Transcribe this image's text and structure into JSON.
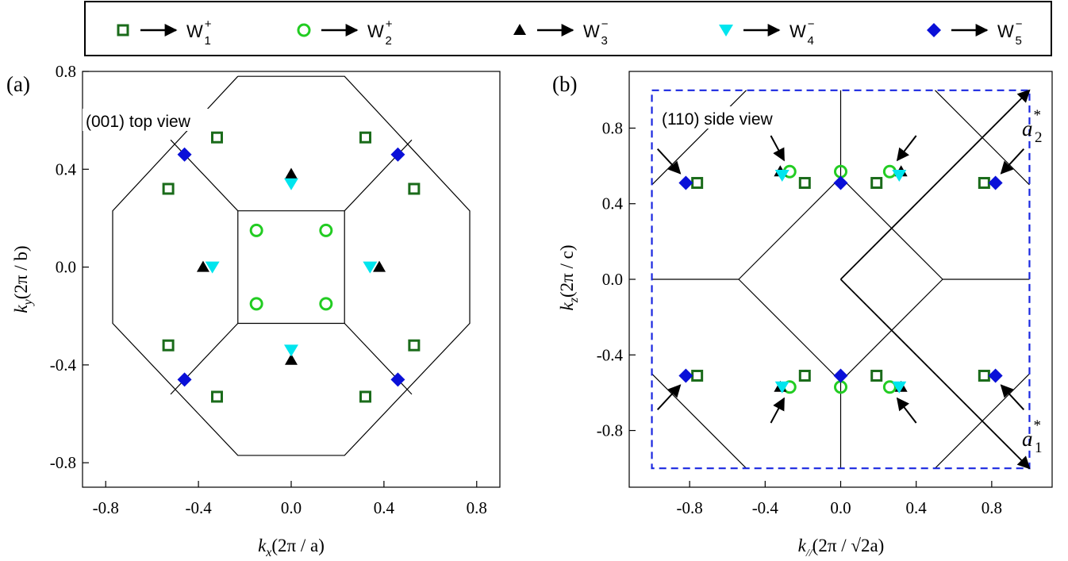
{
  "legend": {
    "items": [
      {
        "label": "W",
        "sup": "+",
        "sub": "1",
        "color": "#1a6b1a",
        "marker": "square-open"
      },
      {
        "label": "W",
        "sup": "+",
        "sub": "2",
        "color": "#22cc22",
        "marker": "circle-open"
      },
      {
        "label": "W",
        "sup": "−",
        "sub": "3",
        "color": "#000000",
        "marker": "triangle-up"
      },
      {
        "label": "W",
        "sup": "−",
        "sub": "4",
        "color": "#00e5ee",
        "marker": "triangle-down"
      },
      {
        "label": "W",
        "sup": "−",
        "sub": "5",
        "color": "#0a10d8",
        "marker": "diamond"
      }
    ]
  },
  "chart_data": [
    {
      "type": "scatter",
      "panel_label": "(a)",
      "annotation": "(001) top view",
      "xlabel": {
        "var": "k",
        "sub": "x",
        "rest": "(2π / a)"
      },
      "ylabel": {
        "var": "k",
        "sub": "y",
        "rest": "(2π / b)"
      },
      "xlim": [
        -0.9,
        0.9
      ],
      "ylim": [
        -0.9,
        0.8
      ],
      "xticks": [
        "-0.8",
        "-0.4",
        "0.0",
        "0.4",
        "0.8"
      ],
      "yticks": [
        "0.8",
        "0.4",
        "0.0",
        "-0.4",
        "-0.8"
      ],
      "xtick_values": [
        -0.8,
        -0.4,
        0.0,
        0.4,
        0.8
      ],
      "ytick_values": [
        0.8,
        0.4,
        0.0,
        -0.4,
        -0.8
      ],
      "series": [
        {
          "name": "W1+",
          "points": [
            [
              -0.32,
              0.53
            ],
            [
              0.32,
              0.53
            ],
            [
              -0.53,
              0.32
            ],
            [
              0.53,
              0.32
            ],
            [
              -0.53,
              -0.32
            ],
            [
              0.53,
              -0.32
            ],
            [
              -0.32,
              -0.53
            ],
            [
              0.32,
              -0.53
            ]
          ]
        },
        {
          "name": "W2+",
          "points": [
            [
              -0.15,
              0.15
            ],
            [
              0.15,
              0.15
            ],
            [
              -0.15,
              -0.15
            ],
            [
              0.15,
              -0.15
            ]
          ]
        },
        {
          "name": "W3-",
          "points": [
            [
              0.0,
              0.38
            ],
            [
              -0.38,
              0.0
            ],
            [
              0.38,
              0.0
            ],
            [
              0.0,
              -0.38
            ]
          ]
        },
        {
          "name": "W4-",
          "points": [
            [
              0.0,
              0.34
            ],
            [
              -0.34,
              0.0
            ],
            [
              0.34,
              0.0
            ],
            [
              0.0,
              -0.34
            ]
          ]
        },
        {
          "name": "W5-",
          "points": [
            [
              -0.46,
              0.46
            ],
            [
              0.46,
              0.46
            ],
            [
              -0.46,
              -0.46
            ],
            [
              0.46,
              -0.46
            ]
          ]
        }
      ],
      "zone_lines": [
        [
          [
            -0.23,
            0.23
          ],
          [
            0.23,
            0.23
          ],
          [
            0.23,
            -0.23
          ],
          [
            -0.23,
            -0.23
          ],
          [
            -0.23,
            0.23
          ]
        ],
        [
          [
            -0.23,
            0.78
          ],
          [
            0.23,
            0.78
          ],
          [
            0.77,
            0.23
          ],
          [
            0.77,
            -0.23
          ],
          [
            0.23,
            -0.77
          ],
          [
            -0.23,
            -0.77
          ],
          [
            -0.77,
            -0.23
          ],
          [
            -0.77,
            0.23
          ],
          [
            -0.23,
            0.78
          ]
        ],
        [
          [
            0.23,
            0.23
          ],
          [
            0.52,
            0.52
          ]
        ],
        [
          [
            -0.23,
            0.23
          ],
          [
            -0.52,
            0.52
          ]
        ],
        [
          [
            0.23,
            -0.23
          ],
          [
            0.52,
            -0.52
          ]
        ],
        [
          [
            -0.23,
            -0.23
          ],
          [
            -0.52,
            -0.52
          ]
        ]
      ]
    },
    {
      "type": "scatter",
      "panel_label": "(b)",
      "annotation": "(110) side view",
      "xlabel": {
        "var": "k",
        "sub": "//",
        "rest": "(2π / √2a)"
      },
      "ylabel": {
        "var": "k",
        "sub": "z",
        "rest": "(2π / c)"
      },
      "xlim": [
        -1.12,
        1.12
      ],
      "ylim": [
        -1.1,
        1.1
      ],
      "xticks": [
        "-0.8",
        "-0.4",
        "0.0",
        "0.4",
        "0.8"
      ],
      "yticks": [
        "0.8",
        "0.4",
        "0.0",
        "-0.4",
        "-0.8"
      ],
      "xtick_values": [
        -0.8,
        -0.4,
        0.0,
        0.4,
        0.8
      ],
      "ytick_values": [
        0.8,
        0.4,
        0.0,
        -0.4,
        -0.8
      ],
      "vector_labels": {
        "a2": "a",
        "a2_sup": "*",
        "a2_sub": "2",
        "a1": "a",
        "a1_sup": "*",
        "a1_sub": "1"
      },
      "series": [
        {
          "name": "W1+",
          "points": [
            [
              -0.76,
              0.51
            ],
            [
              -0.19,
              0.51
            ],
            [
              0.19,
              0.51
            ],
            [
              0.76,
              0.51
            ],
            [
              -0.76,
              -0.51
            ],
            [
              -0.19,
              -0.51
            ],
            [
              0.19,
              -0.51
            ],
            [
              0.76,
              -0.51
            ]
          ]
        },
        {
          "name": "W2+",
          "points": [
            [
              -0.27,
              0.57
            ],
            [
              0.0,
              0.57
            ],
            [
              0.26,
              0.57
            ],
            [
              -0.27,
              -0.57
            ],
            [
              0.0,
              -0.57
            ],
            [
              0.26,
              -0.57
            ]
          ]
        },
        {
          "name": "W3-",
          "points": [
            [
              -0.32,
              0.57
            ],
            [
              0.32,
              0.57
            ],
            [
              -0.32,
              -0.57
            ],
            [
              0.32,
              -0.57
            ]
          ]
        },
        {
          "name": "W4-",
          "points": [
            [
              -0.31,
              0.55
            ],
            [
              0.31,
              0.55
            ],
            [
              -0.31,
              -0.57
            ],
            [
              0.31,
              -0.57
            ]
          ]
        },
        {
          "name": "W5-",
          "points": [
            [
              -0.82,
              0.51
            ],
            [
              0.0,
              0.51
            ],
            [
              0.82,
              0.51
            ],
            [
              -0.82,
              -0.51
            ],
            [
              0.0,
              -0.51
            ],
            [
              0.82,
              -0.51
            ]
          ]
        }
      ],
      "zone_lines": [
        [
          [
            -0.54,
            0.0
          ],
          [
            0.0,
            0.54
          ],
          [
            0.54,
            0.0
          ],
          [
            0.0,
            -0.54
          ],
          [
            -0.54,
            0.0
          ]
        ],
        [
          [
            -1.0,
            0.0
          ],
          [
            -0.54,
            0.0
          ]
        ],
        [
          [
            0.54,
            0.0
          ],
          [
            1.0,
            0.0
          ]
        ],
        [
          [
            0.0,
            0.54
          ],
          [
            0.0,
            1.0
          ]
        ],
        [
          [
            0.0,
            -0.54
          ],
          [
            0.0,
            -1.0
          ]
        ],
        [
          [
            -1.0,
            0.5
          ],
          [
            -0.5,
            1.0
          ]
        ],
        [
          [
            0.5,
            1.0
          ],
          [
            1.0,
            0.5
          ]
        ],
        [
          [
            -1.0,
            -0.5
          ],
          [
            -0.5,
            -1.0
          ]
        ],
        [
          [
            0.5,
            -1.0
          ],
          [
            1.0,
            -0.5
          ]
        ]
      ],
      "reciprocal_vectors": [
        [
          [
            0.0,
            0.0
          ],
          [
            1.0,
            1.0
          ]
        ],
        [
          [
            0.0,
            0.0
          ],
          [
            1.0,
            -1.0
          ]
        ]
      ],
      "dashed_box": [
        [
          -1.0,
          -1.0
        ],
        [
          1.0,
          1.0
        ]
      ],
      "pointer_arrows": [
        [
          [
            -0.97,
            0.69
          ],
          [
            -0.85,
            0.56
          ]
        ],
        [
          [
            -0.37,
            0.76
          ],
          [
            -0.3,
            0.63
          ]
        ],
        [
          [
            0.4,
            0.76
          ],
          [
            0.3,
            0.63
          ]
        ],
        [
          [
            0.97,
            0.69
          ],
          [
            0.85,
            0.56
          ]
        ],
        [
          [
            -0.97,
            -0.69
          ],
          [
            -0.85,
            -0.56
          ]
        ],
        [
          [
            -0.37,
            -0.76
          ],
          [
            -0.3,
            -0.63
          ]
        ],
        [
          [
            0.4,
            -0.76
          ],
          [
            0.3,
            -0.63
          ]
        ],
        [
          [
            0.97,
            -0.69
          ],
          [
            0.85,
            -0.56
          ]
        ]
      ]
    }
  ]
}
